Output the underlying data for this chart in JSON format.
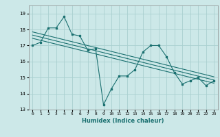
{
  "xlabel": "Humidex (Indice chaleur)",
  "background_color": "#cce8e8",
  "grid_color": "#aad0d0",
  "line_color": "#1a7070",
  "xlim": [
    -0.5,
    23.5
  ],
  "ylim": [
    13,
    19.5
  ],
  "yticks": [
    13,
    14,
    15,
    16,
    17,
    18,
    19
  ],
  "xticks": [
    0,
    1,
    2,
    3,
    4,
    5,
    6,
    7,
    8,
    9,
    10,
    11,
    12,
    13,
    14,
    15,
    16,
    17,
    18,
    19,
    20,
    21,
    22,
    23
  ],
  "series1_x": [
    0,
    1,
    2,
    3,
    4,
    5,
    6,
    7,
    8,
    9,
    10,
    11,
    12,
    13,
    14,
    15,
    16,
    17,
    18,
    19,
    20,
    21,
    22,
    23
  ],
  "series1_y": [
    17.0,
    17.2,
    18.1,
    18.1,
    18.8,
    17.7,
    17.6,
    16.7,
    16.8,
    13.3,
    14.3,
    15.1,
    15.1,
    15.5,
    16.6,
    17.0,
    17.0,
    16.3,
    15.3,
    14.6,
    14.8,
    15.0,
    14.5,
    14.8
  ],
  "trend1_x": [
    0,
    23
  ],
  "trend1_y": [
    17.85,
    15.05
  ],
  "trend2_x": [
    0,
    23
  ],
  "trend2_y": [
    17.65,
    14.85
  ],
  "trend3_x": [
    0,
    23
  ],
  "trend3_y": [
    17.45,
    14.65
  ]
}
